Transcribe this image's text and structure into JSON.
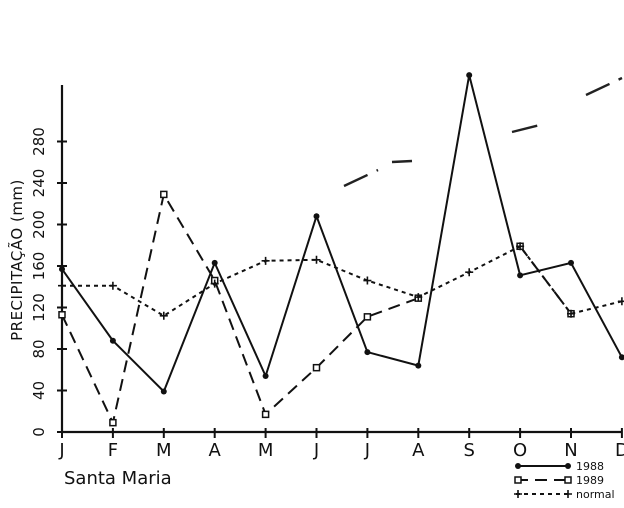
{
  "chart_data": {
    "type": "line",
    "title": "",
    "caption": "Santa Maria",
    "xlabel": "",
    "ylabel": "PRECIPITAÇÃO (mm)",
    "ylim": [
      0,
      300
    ],
    "yticks": [
      0,
      40,
      80,
      120,
      160,
      200,
      240,
      280
    ],
    "yticklabels": [
      "0",
      "40",
      "80",
      "120",
      "160",
      "200",
      "240",
      "280"
    ],
    "categories": [
      "J",
      "F",
      "M",
      "A",
      "M",
      "J",
      "J",
      "A",
      "S",
      "O",
      "N",
      "D"
    ],
    "grid": false,
    "legend_position": "bottom-right",
    "series": [
      {
        "name": "1988",
        "style": "solid",
        "marker": "dot",
        "values": [
          157,
          88,
          39,
          163,
          54,
          208,
          77,
          64,
          344,
          151,
          163,
          72
        ]
      },
      {
        "name": "1989",
        "style": "dashed",
        "marker": "square",
        "values": [
          113,
          9,
          229,
          146,
          17,
          62,
          111,
          129,
          null,
          179,
          114,
          null
        ]
      },
      {
        "name": "normal",
        "style": "dotted",
        "marker": "plus",
        "values": [
          141,
          141,
          112,
          143,
          165,
          166,
          146,
          130,
          154,
          179,
          114,
          126
        ]
      }
    ]
  }
}
